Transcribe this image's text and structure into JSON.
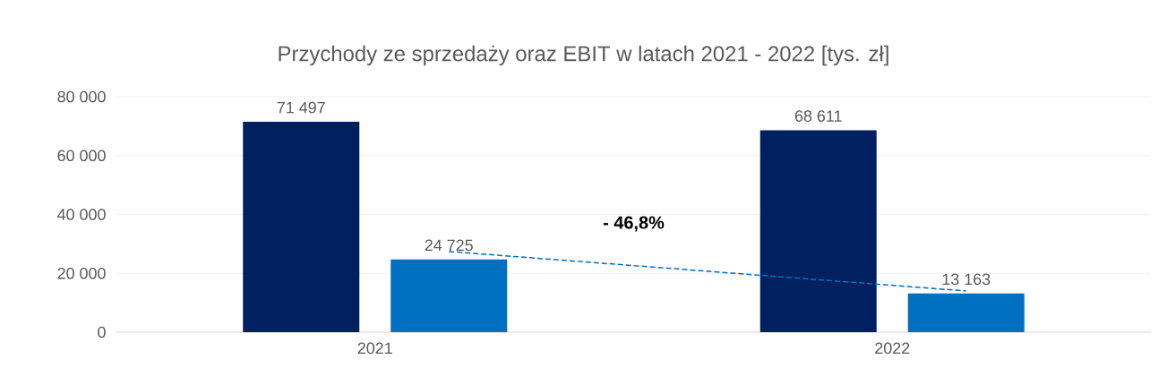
{
  "chart_data": {
    "type": "bar",
    "title": "Przychody ze sprzedaży oraz EBIT w latach 2021 - 2022 [tys. zł]",
    "categories": [
      "2021",
      "2022"
    ],
    "series": [
      {
        "color": "#002060",
        "values": [
          71497,
          68611
        ],
        "value_labels": [
          "71 497",
          "68 611"
        ]
      },
      {
        "color": "#0070c0",
        "values": [
          24725,
          13163
        ],
        "value_labels": [
          "24 725",
          "13 163"
        ]
      },
      {
        "type": "line",
        "values": [
          27400,
          14000
        ],
        "color": "#0070c0",
        "line_style": "dashed"
      }
    ],
    "ylim": [
      0,
      80000
    ],
    "yticks": [
      {
        "value": 0,
        "label": "0"
      },
      {
        "value": 20000,
        "label": "20 000"
      },
      {
        "value": 40000,
        "label": "40 000"
      },
      {
        "value": 60000,
        "label": "60 000"
      },
      {
        "value": 80000,
        "label": "80 000"
      }
    ],
    "grid": "y",
    "annotations": [
      "- 46,8%"
    ]
  }
}
